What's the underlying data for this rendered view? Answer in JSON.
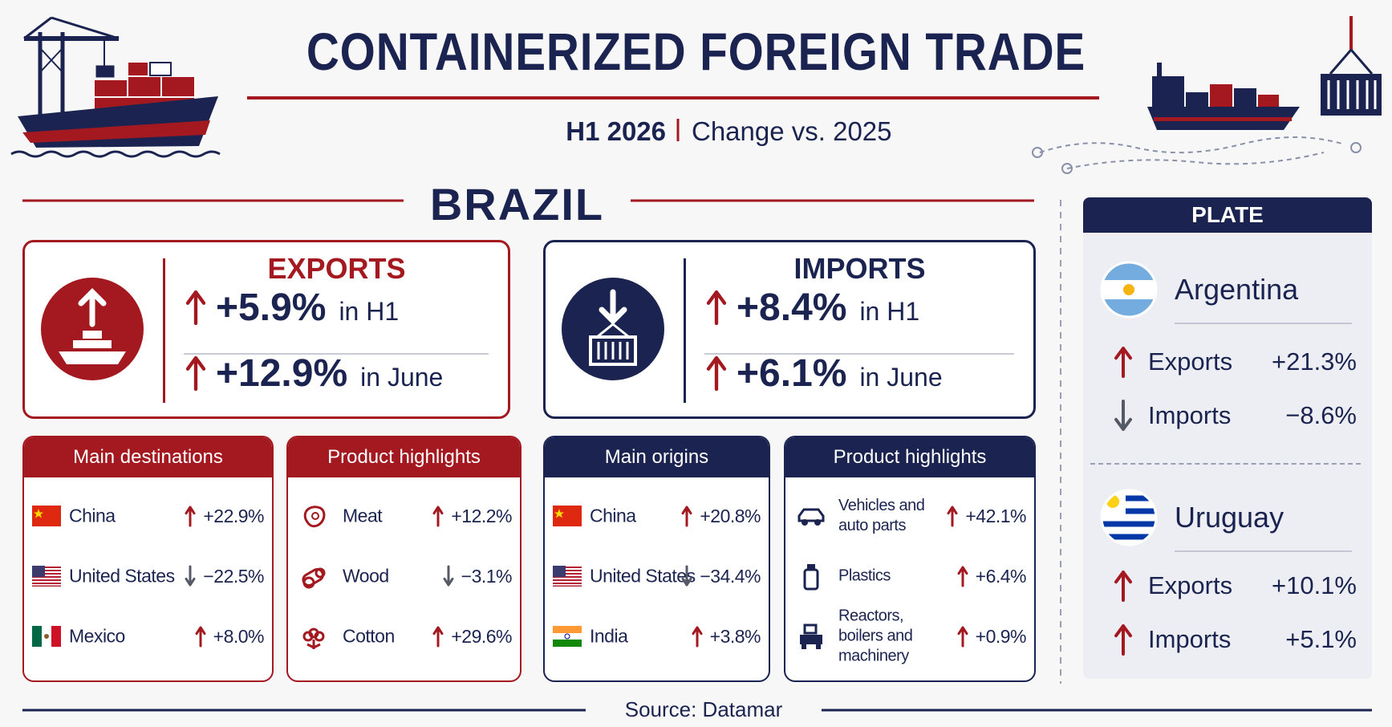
{
  "header": {
    "title": "CONTAINERIZED FOREIGN TRADE",
    "period": "H1 2026",
    "comparison": "Change vs. 2025"
  },
  "country": "BRAZIL",
  "summary": [
    {
      "title": "EXPORTS",
      "rows": [
        {
          "change": "+5.9%",
          "period": "in H1"
        },
        {
          "change": "+12.9%",
          "period": "in June"
        }
      ]
    },
    {
      "title": "IMPORTS",
      "rows": [
        {
          "change": "+8.4%",
          "period": "in H1"
        },
        {
          "change": "+6.1%",
          "period": "in June"
        }
      ]
    }
  ],
  "panels": [
    {
      "title": "Main destinations",
      "rows": [
        {
          "name": "China",
          "change": "+22.9%"
        },
        {
          "name": "United States",
          "change": "−22.5%"
        },
        {
          "name": "Mexico",
          "change": "+8.0%"
        }
      ]
    },
    {
      "title": "Product highlights",
      "rows": [
        {
          "name": "Meat",
          "change": "+12.2%"
        },
        {
          "name": "Wood",
          "change": "−3.1%"
        },
        {
          "name": "Cotton",
          "change": "+29.6%"
        }
      ]
    },
    {
      "title": "Main origins",
      "rows": [
        {
          "name": "China",
          "change": "+20.8%"
        },
        {
          "name": "United States",
          "change": "−34.4%"
        },
        {
          "name": "India",
          "change": "+3.8%"
        }
      ]
    },
    {
      "title": "Product highlights",
      "rows": [
        {
          "name": "Vehicles and auto parts",
          "change": "+42.1%"
        },
        {
          "name": "Plastics",
          "change": "+6.4%"
        },
        {
          "name": "Reactors, boilers and machinery",
          "change": "+0.9%"
        }
      ]
    }
  ],
  "plate": {
    "title": "PLATE",
    "countries": [
      {
        "name": "Argentina",
        "rows": [
          {
            "label": "Exports",
            "change": "+21.3%"
          },
          {
            "label": "Imports",
            "change": "−8.6%"
          }
        ]
      },
      {
        "name": "Uruguay",
        "rows": [
          {
            "label": "Exports",
            "change": "+10.1%"
          },
          {
            "label": "Imports",
            "change": "+5.1%"
          }
        ]
      }
    ]
  },
  "source": "Source: Datamar"
}
